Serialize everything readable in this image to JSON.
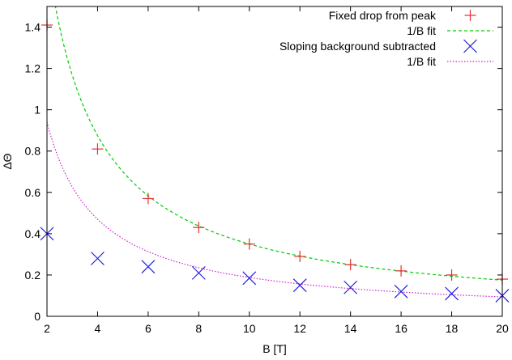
{
  "chart_data": {
    "type": "scatter",
    "title": "",
    "xlabel": "B [T]",
    "ylabel": "ΔΘ",
    "xlim": [
      2,
      20
    ],
    "ylim": [
      0,
      1.5
    ],
    "xticks": [
      2,
      4,
      6,
      8,
      10,
      12,
      14,
      16,
      18,
      20
    ],
    "yticks": [
      0,
      0.2,
      0.4,
      0.6,
      0.8,
      1,
      1.2,
      1.4
    ],
    "grid": false,
    "legend_position": "top-right",
    "series": [
      {
        "name": "Fixed drop from peak",
        "kind": "points",
        "marker": "plus",
        "color": "#e03030",
        "x": [
          2,
          4,
          6,
          8,
          10,
          12,
          14,
          16,
          18,
          20
        ],
        "y": [
          1.41,
          0.81,
          0.57,
          0.43,
          0.35,
          0.29,
          0.25,
          0.22,
          0.2,
          0.18
        ]
      },
      {
        "name": "1/B fit",
        "kind": "curve",
        "style": "dashed",
        "color": "#00cc00",
        "coefficient": 3.5
      },
      {
        "name": "Sloping background subtracted",
        "kind": "points",
        "marker": "cross",
        "color": "#2020dd",
        "x": [
          2,
          4,
          6,
          8,
          10,
          12,
          14,
          16,
          18,
          20
        ],
        "y": [
          0.4,
          0.28,
          0.24,
          0.21,
          0.185,
          0.15,
          0.14,
          0.12,
          0.11,
          0.1
        ]
      },
      {
        "name": "1/B fit",
        "kind": "curve",
        "style": "dotted",
        "color": "#cc22cc",
        "coefficient": 1.88
      }
    ]
  }
}
